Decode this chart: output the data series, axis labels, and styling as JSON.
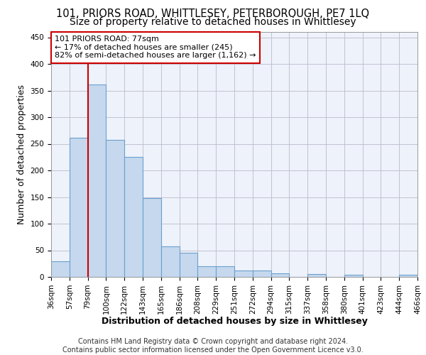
{
  "title1": "101, PRIORS ROAD, WHITTLESEY, PETERBOROUGH, PE7 1LQ",
  "title2": "Size of property relative to detached houses in Whittlesey",
  "xlabel": "Distribution of detached houses by size in Whittlesey",
  "ylabel": "Number of detached properties",
  "footnote": "Contains HM Land Registry data © Crown copyright and database right 2024.\nContains public sector information licensed under the Open Government Licence v3.0.",
  "bin_labels": [
    "36sqm",
    "57sqm",
    "79sqm",
    "100sqm",
    "122sqm",
    "143sqm",
    "165sqm",
    "186sqm",
    "208sqm",
    "229sqm",
    "251sqm",
    "272sqm",
    "294sqm",
    "315sqm",
    "337sqm",
    "358sqm",
    "380sqm",
    "401sqm",
    "423sqm",
    "444sqm",
    "466sqm"
  ],
  "bar_values": [
    30,
    262,
    362,
    257,
    225,
    148,
    57,
    45,
    20,
    20,
    12,
    12,
    7,
    0,
    6,
    0,
    4,
    0,
    0,
    4
  ],
  "bar_color": "#c5d8ee",
  "bar_edge_color": "#6aa0cc",
  "vline_bin_index": 2,
  "annotation_text": "101 PRIORS ROAD: 77sqm\n← 17% of detached houses are smaller (245)\n82% of semi-detached houses are larger (1,162) →",
  "annotation_box_color": "#ffffff",
  "annotation_box_edge_color": "#cc0000",
  "ylim": [
    0,
    460
  ],
  "yticks": [
    0,
    50,
    100,
    150,
    200,
    250,
    300,
    350,
    400,
    450
  ],
  "background_color": "#eef2fa",
  "grid_color": "#bbbbcc",
  "title1_fontsize": 10.5,
  "title2_fontsize": 10,
  "axis_label_fontsize": 9,
  "tick_fontsize": 7.5,
  "annotation_fontsize": 8,
  "footnote_fontsize": 7
}
